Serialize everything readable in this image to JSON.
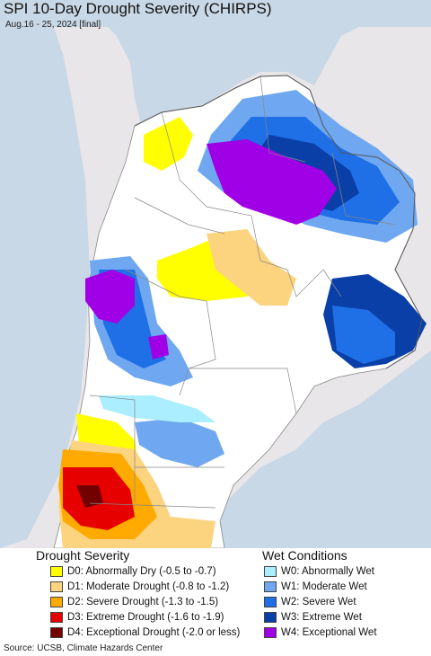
{
  "title": "SPI 10-Day Drought Severity (CHIRPS)",
  "subtitle": "Aug.16 - 25, 2024 [final]",
  "legend": {
    "drought_heading": "Drought Severity",
    "wet_heading": "Wet Conditions",
    "drought": [
      {
        "label": "D0: Abnormally Dry (-0.5 to -0.7)",
        "color": "#ffff00"
      },
      {
        "label": "D1: Moderate Drought (-0.8 to -1.2)",
        "color": "#fcd37f"
      },
      {
        "label": "D2: Severe Drought (-1.3 to -1.5)",
        "color": "#ffaa00"
      },
      {
        "label": "D3: Extreme Drought (-1.6 to -1.9)",
        "color": "#e60000"
      },
      {
        "label": "D4: Exceptional Drought (-2.0 or less)",
        "color": "#730000"
      }
    ],
    "wet": [
      {
        "label": "W0: Abnormally Wet",
        "color": "#aaeeff"
      },
      {
        "label": "W1: Moderate Wet",
        "color": "#6fa8f0"
      },
      {
        "label": "W2: Severe Wet",
        "color": "#1f6fe6"
      },
      {
        "label": "W3: Extreme Wet",
        "color": "#0a3fa8"
      },
      {
        "label": "W4: Exceptional Wet",
        "color": "#a000e6"
      }
    ]
  },
  "colors": {
    "ocean": "#c9d8e6",
    "outside_land": "#e8e6e8",
    "normal_land": "#ffffff",
    "borders": "#888888"
  },
  "source": "Source: UCSB, Climate Hazards Center"
}
